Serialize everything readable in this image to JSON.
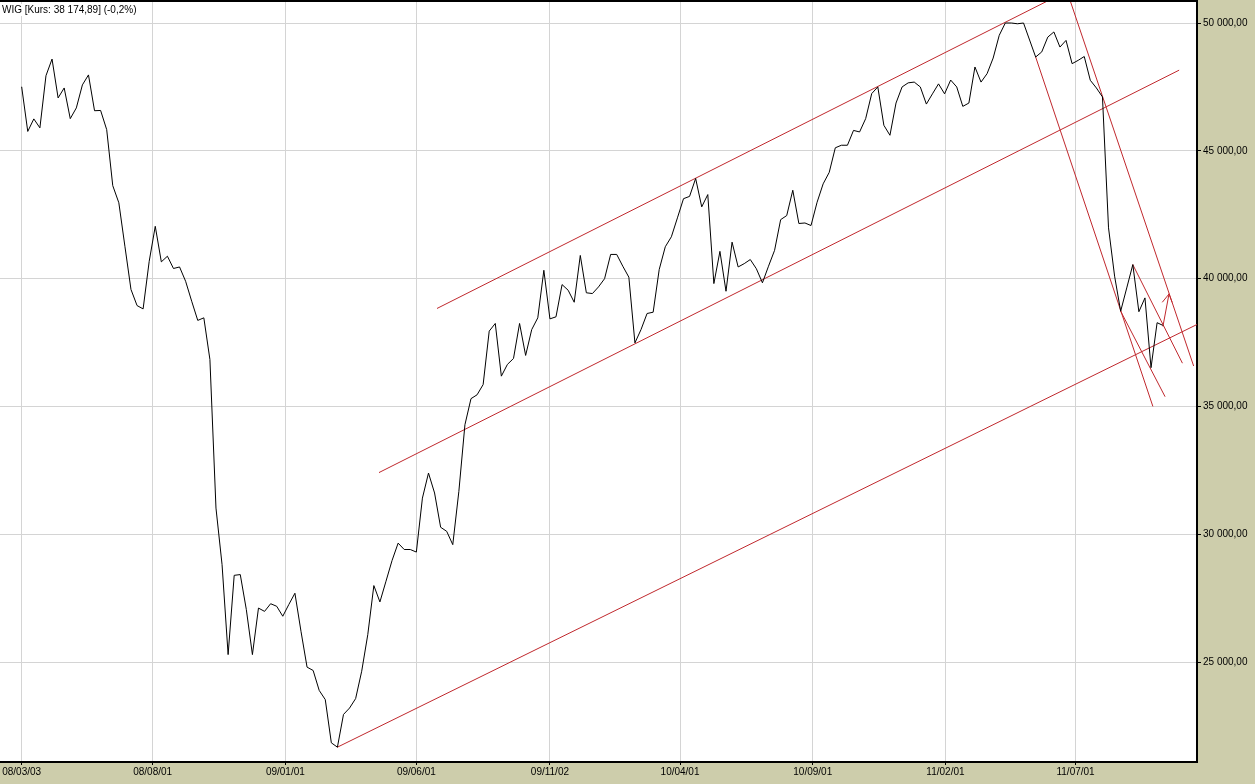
{
  "chart_data": {
    "type": "line",
    "title": "WIG [Kurs: 38 174,89] (-0,2%)",
    "x": [
      "2008-03-03",
      "2008-03-10",
      "2008-03-17",
      "2008-03-24",
      "2008-03-31",
      "2008-04-07",
      "2008-04-14",
      "2008-04-21",
      "2008-04-28",
      "2008-05-05",
      "2008-05-12",
      "2008-05-19",
      "2008-05-26",
      "2008-06-02",
      "2008-06-09",
      "2008-06-16",
      "2008-06-23",
      "2008-06-30",
      "2008-07-07",
      "2008-07-14",
      "2008-07-21",
      "2008-07-28",
      "2008-08-04",
      "2008-08-11",
      "2008-08-18",
      "2008-08-25",
      "2008-09-01",
      "2008-09-08",
      "2008-09-15",
      "2008-09-22",
      "2008-09-29",
      "2008-10-06",
      "2008-10-13",
      "2008-10-20",
      "2008-10-27",
      "2008-11-03",
      "2008-11-10",
      "2008-11-17",
      "2008-11-24",
      "2008-12-01",
      "2008-12-08",
      "2008-12-15",
      "2008-12-22",
      "2008-12-29",
      "2009-01-05",
      "2009-01-12",
      "2009-01-19",
      "2009-01-26",
      "2009-02-02",
      "2009-02-09",
      "2009-02-16",
      "2009-02-23",
      "2009-03-02",
      "2009-03-09",
      "2009-03-16",
      "2009-03-23",
      "2009-03-30",
      "2009-04-06",
      "2009-04-13",
      "2009-04-20",
      "2009-04-27",
      "2009-05-04",
      "2009-05-11",
      "2009-05-18",
      "2009-05-25",
      "2009-06-01",
      "2009-06-08",
      "2009-06-15",
      "2009-06-22",
      "2009-06-29",
      "2009-07-06",
      "2009-07-13",
      "2009-07-20",
      "2009-07-27",
      "2009-08-03",
      "2009-08-10",
      "2009-08-17",
      "2009-08-24",
      "2009-08-31",
      "2009-09-07",
      "2009-09-14",
      "2009-09-21",
      "2009-09-28",
      "2009-10-05",
      "2009-10-12",
      "2009-10-19",
      "2009-10-26",
      "2009-11-02",
      "2009-11-09",
      "2009-11-16",
      "2009-11-23",
      "2009-11-30",
      "2009-12-07",
      "2009-12-14",
      "2009-12-21",
      "2009-12-28",
      "2010-01-04",
      "2010-01-11",
      "2010-01-18",
      "2010-01-25",
      "2010-02-01",
      "2010-02-08",
      "2010-02-15",
      "2010-02-22",
      "2010-03-01",
      "2010-03-08",
      "2010-03-15",
      "2010-03-22",
      "2010-03-29",
      "2010-04-05",
      "2010-04-12",
      "2010-04-19",
      "2010-04-26",
      "2010-05-03",
      "2010-05-10",
      "2010-05-17",
      "2010-05-24",
      "2010-05-31",
      "2010-06-07",
      "2010-06-14",
      "2010-06-21",
      "2010-06-28",
      "2010-07-05",
      "2010-07-12",
      "2010-07-19",
      "2010-07-26",
      "2010-08-02",
      "2010-08-09",
      "2010-08-16",
      "2010-08-23",
      "2010-08-30",
      "2010-09-06",
      "2010-09-13",
      "2010-09-20",
      "2010-09-27",
      "2010-10-04",
      "2010-10-11",
      "2010-10-18",
      "2010-10-25",
      "2010-11-01",
      "2010-11-08",
      "2010-11-15",
      "2010-11-22",
      "2010-11-29",
      "2010-12-06",
      "2010-12-13",
      "2010-12-20",
      "2010-12-27",
      "2011-01-03",
      "2011-01-10",
      "2011-01-17",
      "2011-01-24",
      "2011-01-31",
      "2011-02-07",
      "2011-02-14",
      "2011-02-21",
      "2011-02-28",
      "2011-03-07",
      "2011-03-14",
      "2011-03-21",
      "2011-03-28",
      "2011-04-04",
      "2011-04-11",
      "2011-04-18",
      "2011-04-25",
      "2011-05-02",
      "2011-05-16",
      "2011-05-23",
      "2011-05-30",
      "2011-06-06",
      "2011-06-13",
      "2011-06-20",
      "2011-06-27",
      "2011-07-04",
      "2011-07-11",
      "2011-07-18",
      "2011-07-25",
      "2011-08-01",
      "2011-08-08",
      "2011-08-15",
      "2011-08-22",
      "2011-08-29",
      "2011-09-05",
      "2011-09-12",
      "2011-09-19",
      "2011-09-26",
      "2011-10-03",
      "2011-10-10"
    ],
    "series": [
      {
        "color": "#000000",
        "values": [
          47500,
          45760,
          46250,
          45900,
          47940,
          48590,
          47070,
          47460,
          46260,
          46680,
          47580,
          47970,
          46570,
          46580,
          45830,
          43640,
          42970,
          41270,
          39580,
          38950,
          38820,
          40680,
          42050,
          40660,
          40880,
          40400,
          40460,
          39900,
          39120,
          38370,
          38470,
          36840,
          31030,
          28820,
          25300,
          28400,
          28430,
          27060,
          25300,
          27120,
          26990,
          27290,
          27190,
          26800,
          27260,
          27700,
          26210,
          24810,
          24680,
          23900,
          23540,
          21850,
          21680,
          22960,
          23210,
          23580,
          24650,
          26080,
          28000,
          27360,
          28170,
          28980,
          29660,
          29410,
          29410,
          29310,
          31420,
          32400,
          31620,
          30280,
          30120,
          29600,
          31680,
          34290,
          35310,
          35460,
          35860,
          37950,
          38250,
          36190,
          36650,
          36880,
          38250,
          37000,
          38010,
          38470,
          40330,
          38430,
          38510,
          39770,
          39550,
          39080,
          40910,
          39450,
          39420,
          39680,
          40000,
          40950,
          40950,
          40490,
          40060,
          37490,
          38010,
          38640,
          38690,
          40360,
          41250,
          41640,
          42380,
          43130,
          43220,
          43920,
          42810,
          43290,
          39810,
          41070,
          39510,
          41430,
          40460,
          40590,
          40750,
          40390,
          39840,
          40490,
          41110,
          42310,
          42470,
          43460,
          42160,
          42180,
          42080,
          42990,
          43710,
          44160,
          45120,
          45220,
          45220,
          45800,
          45740,
          46260,
          47240,
          47500,
          46000,
          45610,
          46870,
          47500,
          47660,
          47690,
          47500,
          46830,
          47230,
          47620,
          47230,
          47770,
          47500,
          46740,
          46870,
          48280,
          47690,
          48020,
          48630,
          49520,
          50000,
          50000,
          49970,
          50000,
          48670,
          48870,
          49450,
          49650,
          49060,
          49320,
          48410,
          48540,
          48690,
          47760,
          47460,
          47110,
          41990,
          40100,
          38730,
          39640,
          40550,
          38710,
          39250,
          36520,
          38280,
          38170
        ]
      },
      {
        "type": "line",
        "color": "#c0282d",
        "x": [
          "2009-06-25",
          "2011-05-29"
        ],
        "values": [
          38840,
          50850
        ]
      },
      {
        "type": "line",
        "color": "#c0282d",
        "x": [
          "2009-04-19",
          "2011-10-28"
        ],
        "values": [
          32420,
          48150
        ]
      },
      {
        "type": "line",
        "color": "#c0282d",
        "x": [
          "2009-03-02",
          "2011-11-18"
        ],
        "values": [
          21680,
          38210
        ]
      },
      {
        "type": "line",
        "color": "#c0282d",
        "x": [
          "2011-05-16",
          "2011-09-28"
        ],
        "values": [
          48670,
          35020
        ]
      },
      {
        "type": "line",
        "color": "#c0282d",
        "x": [
          "2011-06-25",
          "2011-11-14"
        ],
        "values": [
          50850,
          36600
        ]
      },
      {
        "type": "line",
        "color": "#c0282d",
        "x": [
          "2011-08-22",
          "2011-10-12"
        ],
        "values": [
          38730,
          35400
        ]
      },
      {
        "type": "line",
        "color": "#c0282d",
        "x": [
          "2011-09-05",
          "2011-11-01"
        ],
        "values": [
          40550,
          36710
        ]
      }
    ],
    "xlim": [
      "2008-02-07",
      "2011-11-18"
    ],
    "xticks": [
      {
        "value": "2008-03-03",
        "label": "08/03/03"
      },
      {
        "value": "2008-08-01",
        "label": "08/08/01"
      },
      {
        "value": "2009-01-01",
        "label": "09/01/01"
      },
      {
        "value": "2009-06-01",
        "label": "09/06/01"
      },
      {
        "value": "2009-11-02",
        "label": "09/11/02"
      },
      {
        "value": "2010-04-01",
        "label": "10/04/01"
      },
      {
        "value": "2010-09-01",
        "label": "10/09/01"
      },
      {
        "value": "2011-02-01",
        "label": "11/02/01"
      },
      {
        "value": "2011-07-01",
        "label": "11/07/01"
      }
    ],
    "ylim": [
      21100,
      50900
    ],
    "yticks": [
      {
        "value": 25000,
        "label": "25 000,00"
      },
      {
        "value": 30000,
        "label": "30 000,00"
      },
      {
        "value": 35000,
        "label": "35 000,00"
      },
      {
        "value": 40000,
        "label": "40 000,00"
      },
      {
        "value": 45000,
        "label": "45 000,00"
      },
      {
        "value": 50000,
        "label": "50 000,00"
      }
    ],
    "grid": true,
    "marker": "none"
  }
}
